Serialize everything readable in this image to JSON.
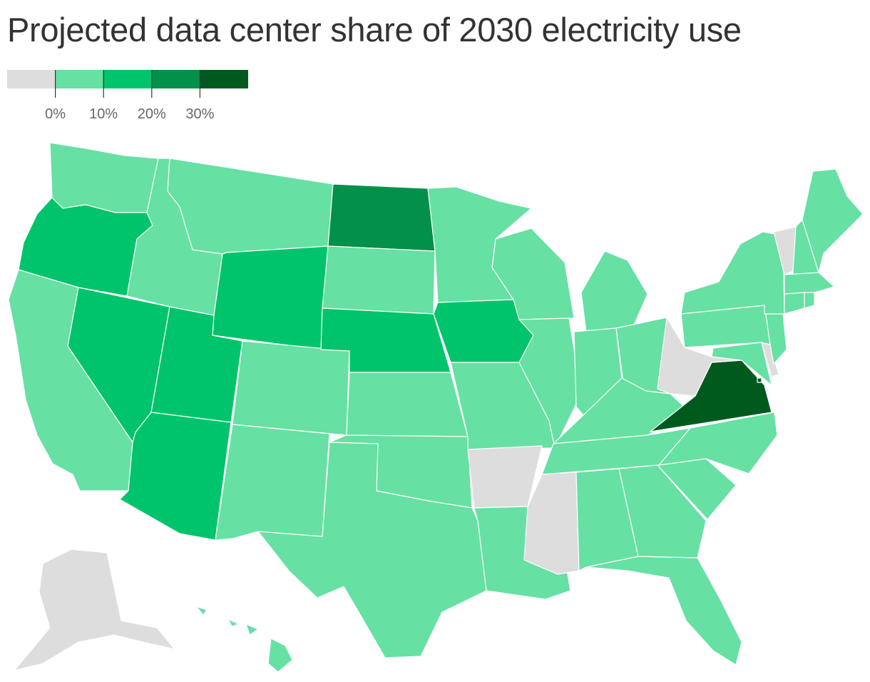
{
  "title": "Projected data center share of 2030 electricity use",
  "legend": {
    "bins": [
      {
        "color": "#dddddd"
      },
      {
        "color": "#66e0a3"
      },
      {
        "color": "#00c46c"
      },
      {
        "color": "#02904a"
      },
      {
        "color": "#005a1e"
      }
    ],
    "tick_labels": [
      "0%",
      "10%",
      "20%",
      "30%"
    ]
  },
  "colors": {
    "none": "#dddddd",
    "low": "#66e0a3",
    "mid": "#00c46c",
    "high": "#02904a",
    "top": "#005a1e"
  },
  "states": [
    {
      "name": "Washington",
      "bin": "low"
    },
    {
      "name": "Oregon",
      "bin": "mid"
    },
    {
      "name": "California",
      "bin": "low"
    },
    {
      "name": "Nevada",
      "bin": "mid"
    },
    {
      "name": "Idaho",
      "bin": "low"
    },
    {
      "name": "Montana",
      "bin": "low"
    },
    {
      "name": "Wyoming",
      "bin": "mid"
    },
    {
      "name": "Utah",
      "bin": "mid"
    },
    {
      "name": "Arizona",
      "bin": "mid"
    },
    {
      "name": "Colorado",
      "bin": "low"
    },
    {
      "name": "New Mexico",
      "bin": "low"
    },
    {
      "name": "North Dakota",
      "bin": "high"
    },
    {
      "name": "South Dakota",
      "bin": "low"
    },
    {
      "name": "Nebraska",
      "bin": "mid"
    },
    {
      "name": "Kansas",
      "bin": "low"
    },
    {
      "name": "Oklahoma",
      "bin": "low"
    },
    {
      "name": "Texas",
      "bin": "low"
    },
    {
      "name": "Minnesota",
      "bin": "low"
    },
    {
      "name": "Iowa",
      "bin": "mid"
    },
    {
      "name": "Missouri",
      "bin": "low"
    },
    {
      "name": "Arkansas",
      "bin": "none"
    },
    {
      "name": "Louisiana",
      "bin": "low"
    },
    {
      "name": "Wisconsin",
      "bin": "low"
    },
    {
      "name": "Illinois",
      "bin": "low"
    },
    {
      "name": "Michigan",
      "bin": "low"
    },
    {
      "name": "Indiana",
      "bin": "low"
    },
    {
      "name": "Ohio",
      "bin": "low"
    },
    {
      "name": "Kentucky",
      "bin": "low"
    },
    {
      "name": "Tennessee",
      "bin": "low"
    },
    {
      "name": "Mississippi",
      "bin": "none"
    },
    {
      "name": "Alabama",
      "bin": "low"
    },
    {
      "name": "Georgia",
      "bin": "low"
    },
    {
      "name": "Florida",
      "bin": "low"
    },
    {
      "name": "South Carolina",
      "bin": "low"
    },
    {
      "name": "North Carolina",
      "bin": "low"
    },
    {
      "name": "Virginia",
      "bin": "top"
    },
    {
      "name": "West Virginia",
      "bin": "none"
    },
    {
      "name": "Maryland",
      "bin": "low"
    },
    {
      "name": "Delaware",
      "bin": "none"
    },
    {
      "name": "New Jersey",
      "bin": "low"
    },
    {
      "name": "Pennsylvania",
      "bin": "low"
    },
    {
      "name": "New York",
      "bin": "low"
    },
    {
      "name": "Vermont",
      "bin": "none"
    },
    {
      "name": "New Hampshire",
      "bin": "low"
    },
    {
      "name": "Maine",
      "bin": "low"
    },
    {
      "name": "Massachusetts",
      "bin": "low"
    },
    {
      "name": "Connecticut",
      "bin": "low"
    },
    {
      "name": "Rhode Island",
      "bin": "low"
    },
    {
      "name": "Alaska",
      "bin": "none"
    },
    {
      "name": "Hawaii",
      "bin": "low"
    },
    {
      "name": "District of Columbia",
      "bin": "top"
    }
  ]
}
